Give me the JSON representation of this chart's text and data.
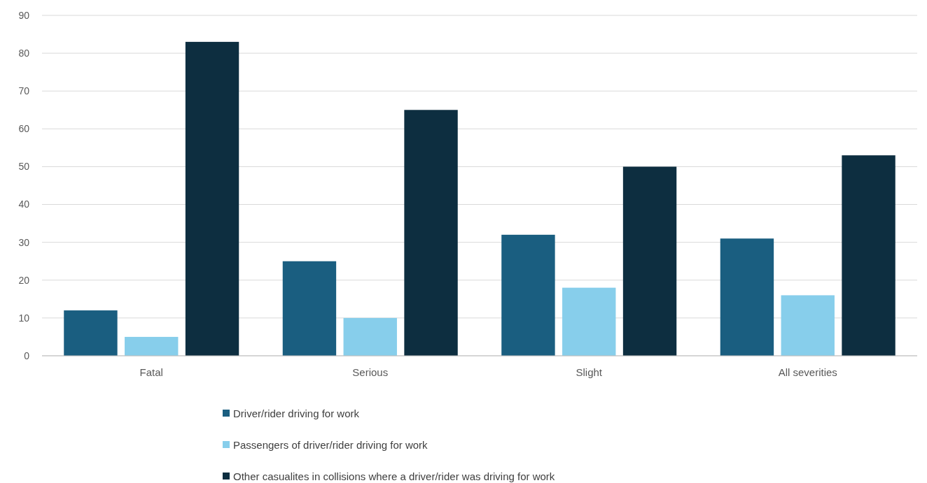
{
  "chart_data": {
    "type": "bar",
    "categories": [
      "Fatal",
      "Serious",
      "Slight",
      "All severities"
    ],
    "series": [
      {
        "name": "Driver/rider driving for work",
        "color": "#1a5e80",
        "values": [
          12,
          25,
          32,
          31
        ]
      },
      {
        "name": "Passengers of driver/rider driving for work",
        "color": "#87ceeb",
        "values": [
          5,
          10,
          18,
          16
        ]
      },
      {
        "name": "Other casualites in collisions where a driver/rider was driving for work",
        "color": "#0d2e40",
        "values": [
          83,
          65,
          50,
          53
        ]
      }
    ],
    "ylim": [
      0,
      90
    ],
    "yticks": [
      0,
      10,
      20,
      30,
      40,
      50,
      60,
      70,
      80,
      90
    ],
    "grid": "y",
    "legend": "bottom"
  }
}
